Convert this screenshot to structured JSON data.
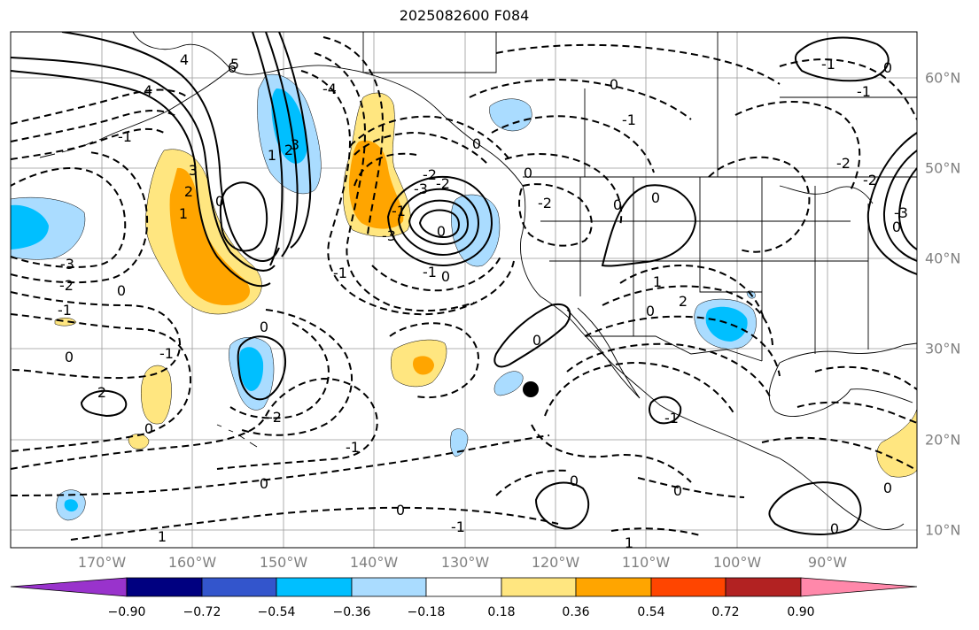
{
  "title": "2025082600 F084",
  "axes": {
    "lon_labels": [
      "170°W",
      "160°W",
      "150°W",
      "140°W",
      "130°W",
      "120°W",
      "110°W",
      "100°W",
      "90°W"
    ],
    "lat_labels": [
      "60°N",
      "50°N",
      "40°N",
      "30°N",
      "20°N",
      "10°N"
    ]
  },
  "contour_labels": [
    "0",
    "-1",
    "-2",
    "-3",
    "0",
    "-1",
    "0",
    "1",
    "2",
    "3",
    "4",
    "-1",
    "0",
    "1",
    "2",
    "3",
    "4",
    "5",
    "6",
    "-4",
    "-3",
    "-2",
    "-1",
    "0",
    "-1",
    "0",
    "-1",
    "-2",
    "-3",
    "0",
    "-2",
    "-1",
    "0",
    "-1",
    "0",
    "1",
    "2",
    "0",
    "1",
    "0",
    "2",
    "-2",
    "0",
    "0",
    "-1",
    "0",
    "-2",
    "-1",
    "0",
    "0",
    "0",
    "-1",
    "0",
    "0",
    "0",
    "1",
    "0",
    "-1",
    "-2",
    "-3",
    "0"
  ],
  "colorbar": {
    "ticks": [
      "−0.90",
      "−0.72",
      "−0.54",
      "−0.36",
      "−0.18",
      "0.18",
      "0.36",
      "0.54",
      "0.72",
      "0.90"
    ],
    "colors": [
      "#9933cc",
      "#000080",
      "#3355cc",
      "#00bfff",
      "#aadcff",
      "#ffffff",
      "#ffe680",
      "#ffa500",
      "#ff4500",
      "#b22222",
      "#ff88aa"
    ]
  },
  "fill_colors": {
    "light_yellow": "#ffe680",
    "orange": "#ffa500",
    "light_blue": "#aadcff",
    "deep_sky_blue": "#00bfff"
  },
  "marker": "storm-center-dot"
}
